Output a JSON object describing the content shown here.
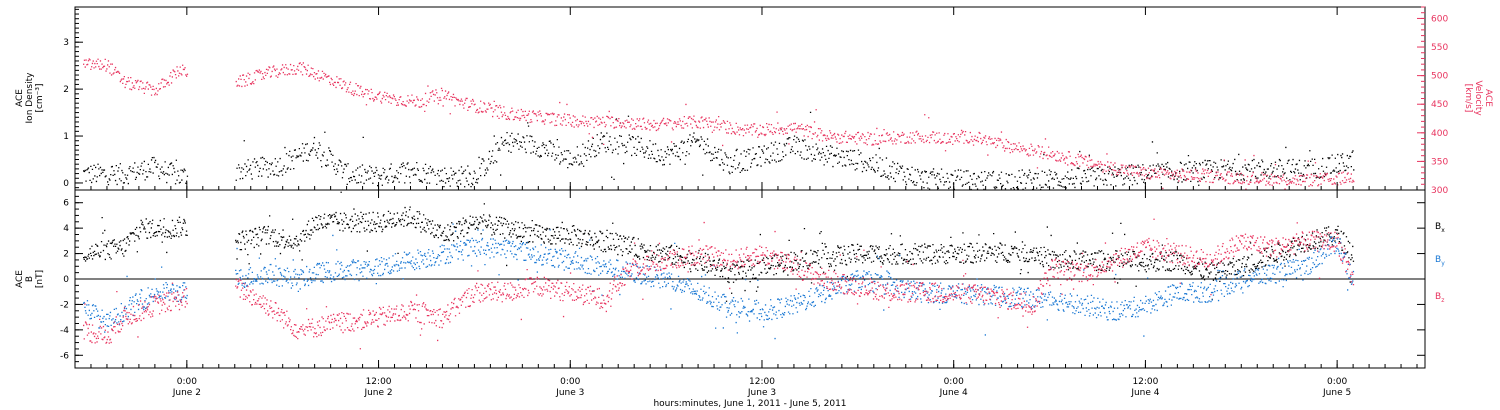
{
  "chart_data": [
    {
      "type": "scatter",
      "panel": "top",
      "ylabel_left": [
        "ACE",
        "Ion Density",
        "[cm⁻³]"
      ],
      "ylabel_right": [
        "ACE",
        "Velocity",
        "[km/s]"
      ],
      "ylim_left": [
        -0.15,
        3.75
      ],
      "ylim_right": [
        300,
        620
      ],
      "yticks_left": [
        0,
        1,
        2,
        3
      ],
      "yticks_right": [
        300,
        350,
        400,
        450,
        500,
        550,
        600
      ],
      "x_range_hours": [
        -7.0,
        77.5
      ],
      "grid": false,
      "series": [
        {
          "key": "density",
          "color": "#000000",
          "axis": "left",
          "knots": [
            [
              -6.5,
              0.2
            ],
            [
              -4,
              0.2
            ],
            [
              -2,
              0.35
            ],
            [
              -0.5,
              0.15
            ],
            [
              4,
              0.3
            ],
            [
              6,
              0.4
            ],
            [
              8,
              0.8
            ],
            [
              10,
              0.2
            ],
            [
              12,
              0.15
            ],
            [
              14,
              0.3
            ],
            [
              16,
              0.15
            ],
            [
              18,
              0.15
            ],
            [
              20,
              0.9
            ],
            [
              22,
              0.8
            ],
            [
              24,
              0.5
            ],
            [
              26,
              0.9
            ],
            [
              28,
              0.8
            ],
            [
              30,
              0.6
            ],
            [
              32,
              0.9
            ],
            [
              34,
              0.4
            ],
            [
              36,
              0.6
            ],
            [
              38,
              0.8
            ],
            [
              40,
              0.6
            ],
            [
              42,
              0.5
            ],
            [
              44,
              0.3
            ],
            [
              46,
              0.1
            ],
            [
              50,
              0.05
            ],
            [
              55,
              0.1
            ],
            [
              60,
              0.2
            ],
            [
              65,
              0.3
            ],
            [
              70,
              0.3
            ],
            [
              72,
              0.4
            ],
            [
              73,
              0.5
            ]
          ],
          "gaps": [
            [
              0.0,
              3.0
            ]
          ]
        },
        {
          "key": "velocity",
          "color": "#e8345f",
          "axis": "right",
          "knots": [
            [
              -6.5,
              520
            ],
            [
              -5,
              520
            ],
            [
              -4,
              490
            ],
            [
              -2,
              475
            ],
            [
              -0.5,
              510
            ],
            [
              3.3,
              490
            ],
            [
              5,
              505
            ],
            [
              7,
              515
            ],
            [
              8.5,
              500
            ],
            [
              11,
              470
            ],
            [
              13,
              460
            ],
            [
              14.5,
              455
            ],
            [
              16,
              470
            ],
            [
              17,
              455
            ],
            [
              20,
              435
            ],
            [
              23,
              425
            ],
            [
              25,
              420
            ],
            [
              27,
              420
            ],
            [
              29,
              415
            ],
            [
              32,
              420
            ],
            [
              35,
              405
            ],
            [
              38,
              410
            ],
            [
              40,
              395
            ],
            [
              43,
              390
            ],
            [
              46,
              395
            ],
            [
              48,
              390
            ],
            [
              49,
              395
            ],
            [
              51,
              380
            ],
            [
              54,
              365
            ],
            [
              57,
              345
            ],
            [
              60,
              330
            ],
            [
              64,
              325
            ],
            [
              68,
              320
            ],
            [
              70,
              318
            ],
            [
              72,
              320
            ],
            [
              73,
              325
            ]
          ],
          "gaps": [
            [
              0.0,
              3.0
            ]
          ]
        }
      ]
    },
    {
      "type": "scatter",
      "panel": "bottom",
      "ylabel": [
        "ACE",
        "B",
        "[nT]"
      ],
      "ylim": [
        -7,
        7
      ],
      "yticks": [
        -6,
        -4,
        -2,
        0,
        2,
        4,
        6
      ],
      "x_range_hours": [
        -7.0,
        77.5
      ],
      "zero_line": true,
      "series": [
        {
          "key": "bx",
          "label_main": "B",
          "label_sub": "x",
          "color": "#000000",
          "knots": [
            [
              -6.5,
              2
            ],
            [
              -4,
              2.5
            ],
            [
              -3,
              4
            ],
            [
              -1,
              4
            ],
            [
              -0.2,
              4.2
            ],
            [
              3,
              3
            ],
            [
              5,
              3.5
            ],
            [
              7,
              3
            ],
            [
              8,
              4.5
            ],
            [
              12,
              4.5
            ],
            [
              14,
              5
            ],
            [
              16,
              3.5
            ],
            [
              18,
              4.5
            ],
            [
              20,
              4
            ],
            [
              22,
              3.5
            ],
            [
              24,
              3.5
            ],
            [
              26,
              3
            ],
            [
              28,
              2.5
            ],
            [
              30,
              2
            ],
            [
              32,
              1.5
            ],
            [
              34,
              0.5
            ],
            [
              36,
              1
            ],
            [
              38,
              1.5
            ],
            [
              40,
              1.8
            ],
            [
              42,
              2
            ],
            [
              46,
              2
            ],
            [
              50,
              2.1
            ],
            [
              53,
              2.2
            ],
            [
              54,
              1.5
            ],
            [
              56,
              1.5
            ],
            [
              58,
              1.5
            ],
            [
              60,
              1.4
            ],
            [
              62,
              1.5
            ],
            [
              64,
              0.5
            ],
            [
              66,
              1
            ],
            [
              68,
              2
            ],
            [
              70,
              3
            ],
            [
              72,
              3.5
            ],
            [
              73,
              2
            ]
          ],
          "gaps": [
            [
              0.0,
              3.0
            ]
          ]
        },
        {
          "key": "by",
          "label_main": "B",
          "label_sub": "y",
          "color": "#1a78d4",
          "knots": [
            [
              -6.5,
              -2
            ],
            [
              -5,
              -3.5
            ],
            [
              -4,
              -2.5
            ],
            [
              -2,
              -1
            ],
            [
              -0.2,
              -1
            ],
            [
              3,
              0
            ],
            [
              5,
              0.5
            ],
            [
              7,
              0
            ],
            [
              8,
              0.5
            ],
            [
              12,
              1
            ],
            [
              14,
              1.5
            ],
            [
              16,
              2
            ],
            [
              18,
              2.5
            ],
            [
              20,
              2.5
            ],
            [
              22,
              2
            ],
            [
              24,
              1.5
            ],
            [
              26,
              1
            ],
            [
              28,
              0.5
            ],
            [
              30,
              0
            ],
            [
              32,
              -1
            ],
            [
              34,
              -2
            ],
            [
              36,
              -2.5
            ],
            [
              38,
              -2
            ],
            [
              40,
              -1
            ],
            [
              42,
              0
            ],
            [
              44,
              -0.5
            ],
            [
              46,
              -1
            ],
            [
              50,
              -1.2
            ],
            [
              53,
              -1.5
            ],
            [
              54,
              -1.5
            ],
            [
              56,
              -2
            ],
            [
              58,
              -2.5
            ],
            [
              60,
              -2
            ],
            [
              62,
              -1
            ],
            [
              64,
              -1
            ],
            [
              66,
              0
            ],
            [
              68,
              0.5
            ],
            [
              70,
              1
            ],
            [
              72,
              3
            ],
            [
              73,
              0
            ]
          ],
          "gaps": [
            [
              0.0,
              3.0
            ]
          ]
        },
        {
          "key": "bz",
          "label_main": "B",
          "label_sub": "z",
          "color": "#e8345f",
          "knots": [
            [
              -6.5,
              -4
            ],
            [
              -5,
              -4.5
            ],
            [
              -4,
              -3
            ],
            [
              -2,
              -2
            ],
            [
              -0.2,
              -1.5
            ],
            [
              3,
              -0.5
            ],
            [
              5,
              -2
            ],
            [
              7,
              -4
            ],
            [
              9,
              -3.5
            ],
            [
              12,
              -3
            ],
            [
              14,
              -2.5
            ],
            [
              16,
              -3
            ],
            [
              18,
              -1
            ],
            [
              20,
              -1
            ],
            [
              22,
              -0.5
            ],
            [
              24,
              -1
            ],
            [
              26,
              -1.5
            ],
            [
              28,
              1
            ],
            [
              30,
              1.5
            ],
            [
              32,
              2
            ],
            [
              34,
              1.5
            ],
            [
              36,
              2
            ],
            [
              38,
              1
            ],
            [
              40,
              0
            ],
            [
              42,
              -0.5
            ],
            [
              44,
              -1
            ],
            [
              46,
              -1
            ],
            [
              50,
              -1.2
            ],
            [
              53,
              -2
            ],
            [
              54,
              1
            ],
            [
              56,
              0.5
            ],
            [
              58,
              1.5
            ],
            [
              60,
              2.5
            ],
            [
              62,
              2
            ],
            [
              64,
              1.5
            ],
            [
              66,
              3
            ],
            [
              68,
              2.5
            ],
            [
              70,
              3
            ],
            [
              72,
              3
            ],
            [
              73,
              -0.5
            ]
          ],
          "gaps": [
            [
              0.0,
              3.0
            ]
          ]
        }
      ]
    }
  ],
  "x_axis": {
    "tick_hours": [
      0,
      12,
      24,
      36,
      48,
      60,
      72
    ],
    "tick_labels": [
      [
        "0:00",
        "June 2"
      ],
      [
        "12:00",
        "June 2"
      ],
      [
        "0:00",
        "June 3"
      ],
      [
        "12:00",
        "June 3"
      ],
      [
        "0:00",
        "June 4"
      ],
      [
        "12:00",
        "June 4"
      ],
      [
        "0:00",
        "June 5"
      ]
    ],
    "xlabel": "hours:minutes, June  1, 2011 - June  5, 2011"
  },
  "colors": {
    "black": "#000000",
    "blue": "#1a78d4",
    "red": "#e8345f"
  }
}
